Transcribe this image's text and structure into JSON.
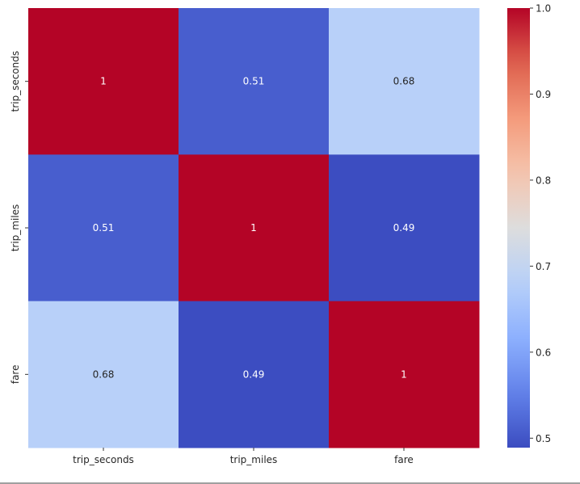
{
  "chart_data": {
    "type": "heatmap",
    "title": "",
    "xlabel": "",
    "ylabel": "",
    "x_categories": [
      "trip_seconds",
      "trip_miles",
      "fare"
    ],
    "y_categories": [
      "trip_seconds",
      "trip_miles",
      "fare"
    ],
    "values": [
      [
        1,
        0.51,
        0.68
      ],
      [
        0.51,
        1,
        0.49
      ],
      [
        0.68,
        0.49,
        1
      ]
    ],
    "annotations": [
      [
        "1",
        "0.51",
        "0.68"
      ],
      [
        "0.51",
        "1",
        "0.49"
      ],
      [
        "0.68",
        "0.49",
        "1"
      ]
    ],
    "colormap": "coolwarm",
    "color_range": [
      0.489,
      1.0
    ],
    "colorbar": {
      "ticks": [
        0.5,
        0.6,
        0.7,
        0.8,
        0.9,
        1.0
      ],
      "tick_labels": [
        "0.5",
        "0.6",
        "0.7",
        "0.8",
        "0.9",
        "1.0"
      ],
      "placement": "right"
    },
    "grid": false
  }
}
